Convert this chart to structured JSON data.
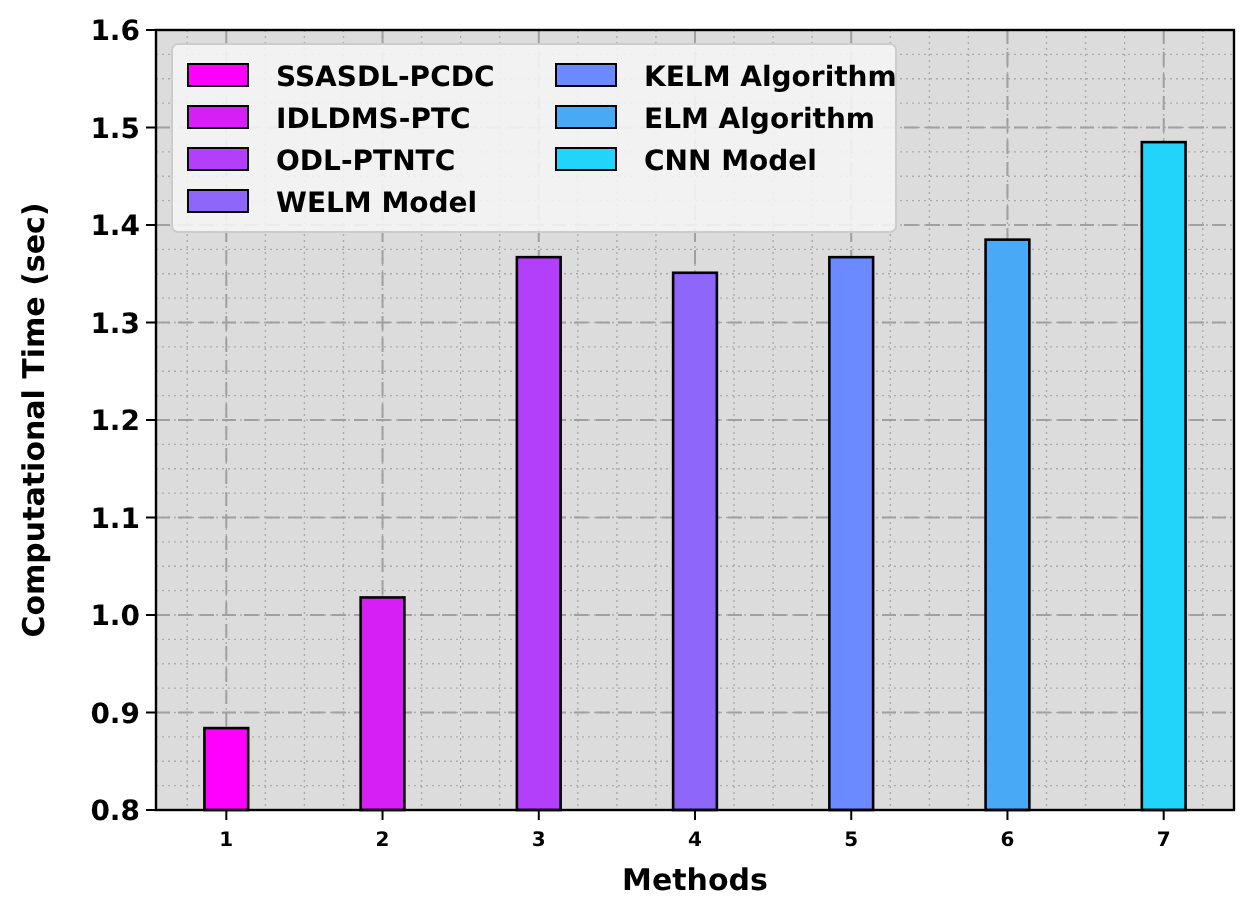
{
  "chart_data": {
    "type": "bar",
    "xlabel": "Methods",
    "ylabel": "Computational Time (sec)",
    "xlim": [
      0.55,
      7.45
    ],
    "xticks": [
      1,
      2,
      3,
      4,
      5,
      6,
      7
    ],
    "ylim": [
      0.8,
      1.6
    ],
    "yticks": [
      {
        "value": 0.8,
        "label": "0.8"
      },
      {
        "value": 0.9,
        "label": "0.9"
      },
      {
        "value": 1.0,
        "label": "1.0"
      },
      {
        "value": 1.1,
        "label": "1.1"
      },
      {
        "value": 1.2,
        "label": "1.2"
      },
      {
        "value": 1.3,
        "label": "1.3"
      },
      {
        "value": 1.4,
        "label": "1.4"
      },
      {
        "value": 1.5,
        "label": "1.5"
      },
      {
        "value": 1.6,
        "label": "1.6"
      }
    ],
    "grid": true,
    "legend": "top left",
    "series": [
      {
        "name": "SSASDL-PCDC",
        "color": "#ff00ff",
        "x": [
          1
        ],
        "values": [
          0.884
        ]
      },
      {
        "name": "IDLDMS-PTC",
        "color": "#d61ff5",
        "x": [
          2
        ],
        "values": [
          1.018
        ]
      },
      {
        "name": "ODL-PTNTC",
        "color": "#b43ffa",
        "x": [
          3
        ],
        "values": [
          1.367
        ]
      },
      {
        "name": "WELM Model",
        "color": "#8f66fa",
        "x": [
          4
        ],
        "values": [
          1.351
        ]
      },
      {
        "name": "KELM Algorithm",
        "color": "#6b8aff",
        "x": [
          5
        ],
        "values": [
          1.367
        ]
      },
      {
        "name": "ELM Algorithm",
        "color": "#48a9f7",
        "x": [
          6
        ],
        "values": [
          1.385
        ]
      },
      {
        "name": "CNN Model",
        "color": "#22d3fa",
        "x": [
          7
        ],
        "values": [
          1.485
        ]
      }
    ]
  }
}
